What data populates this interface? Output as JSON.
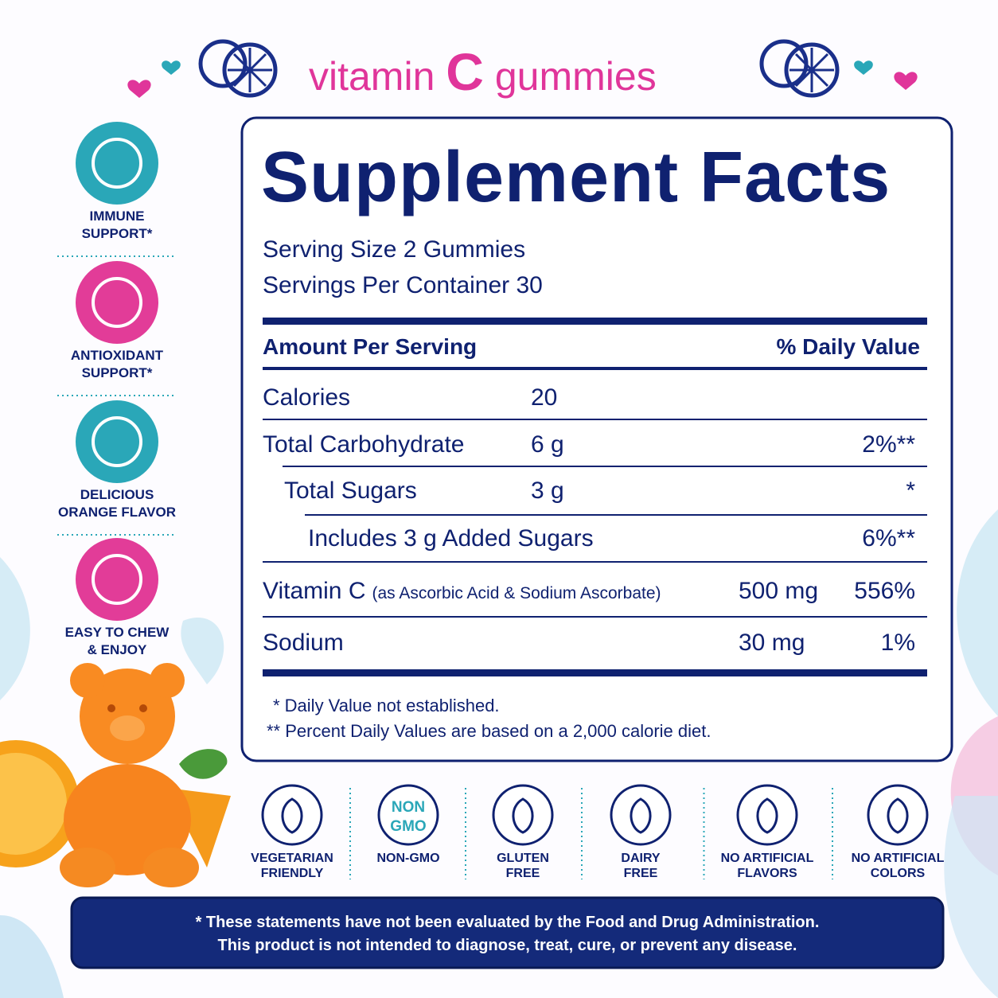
{
  "header": {
    "word_left": "vitamin",
    "letter": "C",
    "word_right": "gummies"
  },
  "benefits": [
    {
      "lines": [
        "IMMUNE",
        "SUPPORT*"
      ]
    },
    {
      "lines": [
        "ANTIOXIDANT",
        "SUPPORT*"
      ]
    },
    {
      "lines": [
        "DELICIOUS",
        "ORANGE FLAVOR"
      ]
    },
    {
      "lines": [
        "EASY TO CHEW",
        "& ENJOY"
      ]
    }
  ],
  "facts": {
    "title": "Supplement Facts",
    "serving_size": "Serving Size 2 Gummies",
    "servings_per_container": "Servings Per Container 30",
    "column_left": "Amount Per Serving",
    "column_right": "% Daily Value",
    "rows": [
      {
        "name": "Calories",
        "amount": "20"
      },
      {
        "name": "Total Carbohydrate",
        "amount": "6 g",
        "dv": "2%**"
      },
      {
        "name": "Total Sugars",
        "amount": "3 g",
        "dv": "*"
      },
      {
        "name": "Includes 3 g Added Sugars",
        "dv": "6%**"
      },
      {
        "name": "Vitamin C",
        "note": "(as Ascorbic Acid & Sodium Ascorbate)",
        "amount": "500 mg",
        "dv": "556%"
      },
      {
        "name": "Sodium",
        "amount": "30 mg",
        "dv": "1%"
      }
    ],
    "footnotes": [
      "* Daily Value not established.",
      "** Percent Daily Values are based on a 2,000 calorie diet."
    ]
  },
  "badges": [
    {
      "lines": [
        "VEGETARIAN",
        "FRIENDLY"
      ]
    },
    {
      "icon_text": [
        "NON",
        "GMO"
      ],
      "lines": [
        "NON-GMO"
      ]
    },
    {
      "lines": [
        "GLUTEN",
        "FREE"
      ]
    },
    {
      "lines": [
        "DAIRY",
        "FREE"
      ]
    },
    {
      "lines": [
        "NO ARTIFICIAL",
        "FLAVORS"
      ]
    },
    {
      "lines": [
        "NO ARTIFICIAL",
        "COLORS"
      ]
    }
  ],
  "disclaimer": [
    "* These statements have not been evaluated by the Food and Drug Administration.",
    "This product is not intended to diagnose, treat, cure, or prevent any disease."
  ]
}
